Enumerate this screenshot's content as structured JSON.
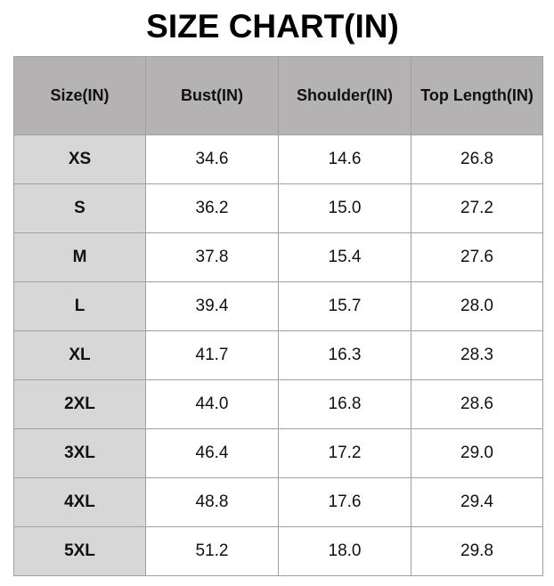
{
  "header": {
    "title": "SIZE CHART(IN)"
  },
  "table": {
    "columns": [
      "Size(IN)",
      "Bust(IN)",
      "Shoulder(IN)",
      "Top Length(IN)"
    ],
    "rows": [
      [
        "XS",
        "34.6",
        "14.6",
        "26.8"
      ],
      [
        "S",
        "36.2",
        "15.0",
        "27.2"
      ],
      [
        "M",
        "37.8",
        "15.4",
        "27.6"
      ],
      [
        "L",
        "39.4",
        "15.7",
        "28.0"
      ],
      [
        "XL",
        "41.7",
        "16.3",
        "28.3"
      ],
      [
        "2XL",
        "44.0",
        "16.8",
        "28.6"
      ],
      [
        "3XL",
        "46.4",
        "17.2",
        "29.0"
      ],
      [
        "4XL",
        "48.8",
        "17.6",
        "29.4"
      ],
      [
        "5XL",
        "51.2",
        "18.0",
        "29.8"
      ]
    ]
  }
}
